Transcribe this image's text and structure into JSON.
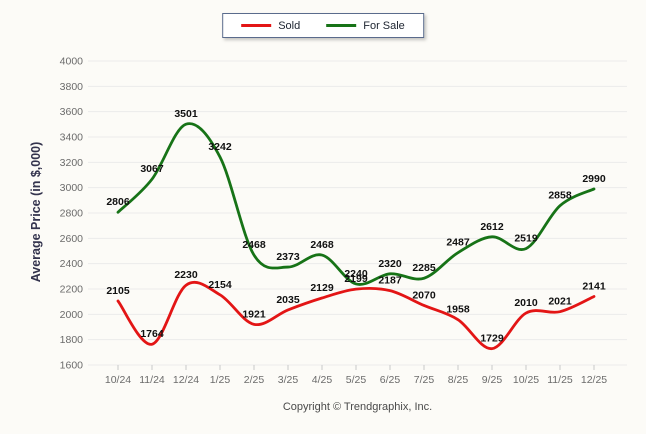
{
  "page": {
    "background": "#fcfbf7"
  },
  "chart_data": {
    "type": "line",
    "x": [
      "10/24",
      "11/24",
      "12/24",
      "1/25",
      "2/25",
      "3/25",
      "4/25",
      "5/25",
      "6/25",
      "7/25",
      "8/25",
      "9/25",
      "10/25",
      "11/25",
      "12/25"
    ],
    "series": [
      {
        "name": "Sold",
        "color": "#e31515",
        "values": [
          2105,
          1764,
          2230,
          2154,
          1921,
          2035,
          2129,
          2199,
          2187,
          2070,
          1958,
          1729,
          2010,
          2021,
          2141
        ]
      },
      {
        "name": "For Sale",
        "color": "#177317",
        "values": [
          2806,
          3067,
          3501,
          3242,
          2468,
          2373,
          2468,
          2240,
          2320,
          2285,
          2487,
          2612,
          2519,
          2858,
          2990
        ]
      }
    ],
    "title": "",
    "xlabel": "",
    "ylabel": "Average Price (in $,000)",
    "ylim": [
      1600,
      4000
    ],
    "ytick_step": 200,
    "grid": "horizontal",
    "grid_color": "#ebebeb",
    "tick_mark_color": "#c9c9c9",
    "legend_position": "top-center",
    "smoothing": true,
    "data_labels": true
  },
  "footer": {
    "copyright": "Copyright © Trendgraphix, Inc."
  }
}
